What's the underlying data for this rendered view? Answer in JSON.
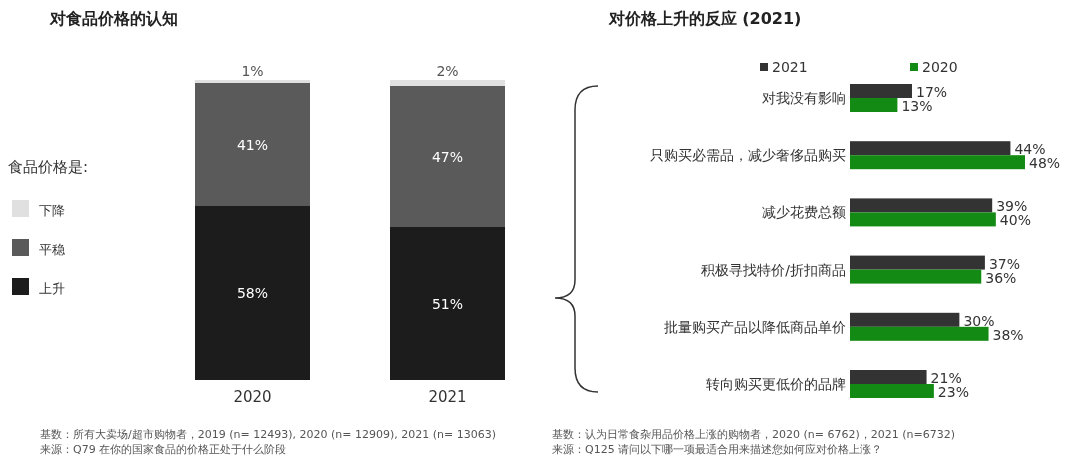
{
  "chart_data": [
    {
      "type": "bar",
      "stacked": true,
      "title": "对食品价格的认知",
      "categories": [
        "2020",
        "2021"
      ],
      "series": [
        {
          "name": "上升",
          "color": "#1c1c1c",
          "values": [
            58,
            51
          ],
          "value_labels": [
            "58%",
            "51%"
          ]
        },
        {
          "name": "平稳",
          "color": "#5a5a5a",
          "values": [
            41,
            47
          ],
          "value_labels": [
            "41%",
            "47%"
          ]
        },
        {
          "name": "下降",
          "color": "#e0e0e0",
          "values": [
            1,
            2
          ],
          "value_labels": [
            "1%",
            "2%"
          ]
        }
      ],
      "legend": "left",
      "legend_title": "食品价格是:",
      "annotations": [
        "基数：所有大卖场/超市购物者，2019 (n= 12493), 2020 (n= 12909), 2021 (n= 13063)",
        "来源：Q79 在你的国家食品的价格正处于什么阶段"
      ]
    },
    {
      "type": "bar",
      "orientation": "horizontal",
      "title": "对价格上升的反应 (2021)",
      "categories": [
        "对我没有影响",
        "只购买必需品，减少奢侈品购买",
        "减少花费总额",
        "积极寻找特价/折扣商品",
        "批量购买产品以降低商品单价",
        "转向购买更低价的品牌"
      ],
      "series": [
        {
          "name": "2021",
          "color": "#333333",
          "values": [
            17,
            44,
            39,
            37,
            30,
            21
          ],
          "value_labels": [
            "17%",
            "44%",
            "39%",
            "37%",
            "30%",
            "21%"
          ]
        },
        {
          "name": "2020",
          "color": "#138a13",
          "values": [
            13,
            48,
            40,
            36,
            38,
            23
          ],
          "value_labels": [
            "13%",
            "48%",
            "40%",
            "36%",
            "38%",
            "23%"
          ]
        }
      ],
      "legend": "top",
      "annotations": [
        "基数：认为日常食杂用品价格上涨的购物者，2020 (n= 6762)，2021 (n=6732)",
        "来源：Q125 请问以下哪一项最适合用来描述您如何应对价格上涨？"
      ]
    }
  ]
}
